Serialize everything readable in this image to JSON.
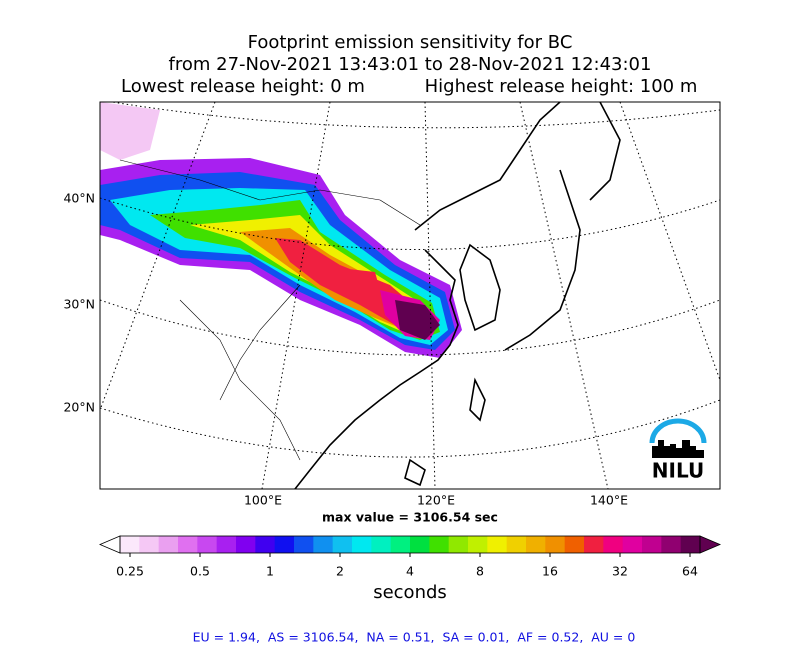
{
  "title": {
    "line1": "Footprint emission sensitivity for BC",
    "line2": "from 27-Nov-2021 13:43:01 to 28-Nov-2021 12:43:01",
    "line3_left": "Lowest release height: 0 m",
    "line3_right": "Highest release height: 100 m"
  },
  "map": {
    "lat_labels": [
      "40°N",
      "30°N",
      "20°N"
    ],
    "lon_labels": [
      "100°E",
      "120°E",
      "140°E"
    ],
    "max_value_label": "max value = 3106.54 sec"
  },
  "colorbar": {
    "ticks": [
      "0.25",
      "0.5",
      "1",
      "2",
      "4",
      "8",
      "16",
      "32",
      "64"
    ],
    "label": "seconds",
    "colors": [
      "#fbe8fb",
      "#f5c8f5",
      "#eaa0f0",
      "#e070f0",
      "#c848f0",
      "#a820f0",
      "#8000f0",
      "#4000f0",
      "#1010f0",
      "#1050f0",
      "#1090f0",
      "#10c0f0",
      "#00e8f0",
      "#00f0c0",
      "#00f080",
      "#00e040",
      "#40e000",
      "#90e800",
      "#c0f000",
      "#f0f000",
      "#f0d000",
      "#f0b000",
      "#f09000",
      "#f06000",
      "#f02040",
      "#f00080",
      "#e000a0",
      "#c00090",
      "#900070",
      "#600050"
    ]
  },
  "footer": "EU = 1.94,  AS = 3106.54,  NA = 0.51,  SA = 0.01,  AF = 0.52,  AU = 0",
  "logo": "NILU"
}
